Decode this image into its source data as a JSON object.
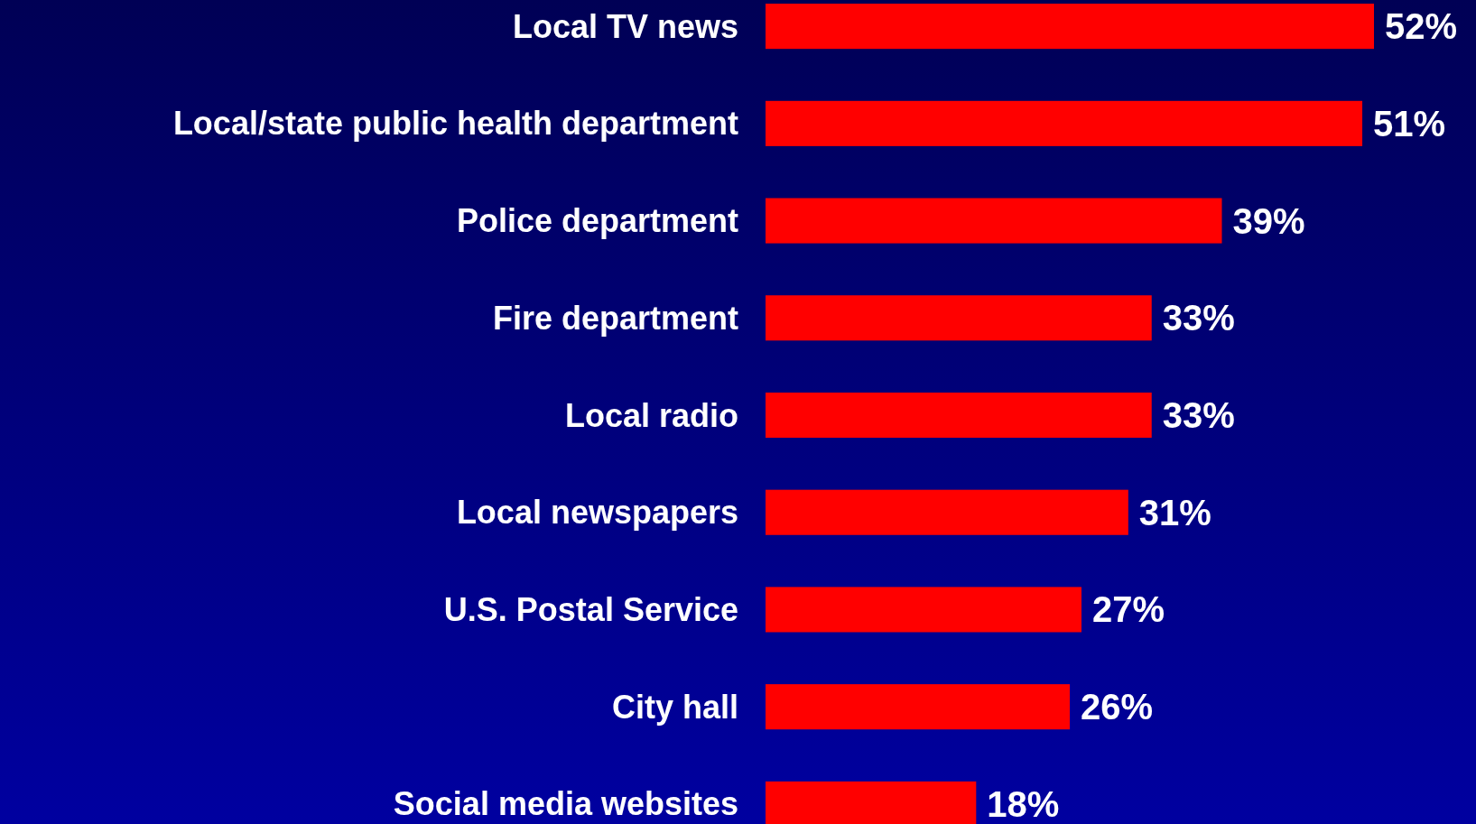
{
  "chart_data": {
    "type": "bar",
    "orientation": "horizontal",
    "categories": [
      "Local TV news",
      "Local/state public health department",
      "Police department",
      "Fire department",
      "Local radio",
      "Local newspapers",
      "U.S. Postal Service",
      "City hall",
      "Social media websites"
    ],
    "values": [
      52,
      51,
      39,
      33,
      33,
      31,
      27,
      26,
      18
    ],
    "value_labels": [
      "52%",
      "51%",
      "39%",
      "33%",
      "33%",
      "31%",
      "27%",
      "26%",
      "18%"
    ],
    "color": "#ff0000"
  }
}
